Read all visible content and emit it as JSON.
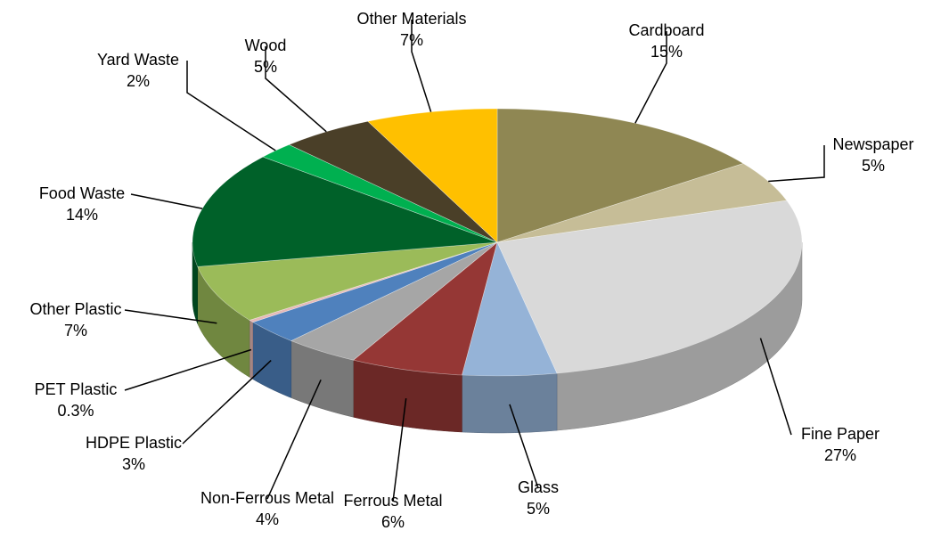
{
  "chart_data": {
    "type": "pie",
    "categories": [
      "Cardboard",
      "Newspaper",
      "Fine Paper",
      "Glass",
      "Ferrous Metal",
      "Non-Ferrous Metal",
      "HDPE Plastic",
      "PET Plastic",
      "Other Plastic",
      "Food Waste",
      "Yard Waste",
      "Wood",
      "Other Materials"
    ],
    "values": [
      15,
      5,
      27,
      5,
      6,
      4,
      3,
      0.3,
      7,
      14,
      2,
      5,
      7
    ],
    "value_labels": [
      "15%",
      "5%",
      "27%",
      "5%",
      "6%",
      "4%",
      "3%",
      "0.3%",
      "7%",
      "14%",
      "2%",
      "5%",
      "7%"
    ],
    "colors": [
      "#8f8753",
      "#c6bd97",
      "#d9d9d9",
      "#95b3d7",
      "#953735",
      "#a6a6a6",
      "#4f81bd",
      "#e6b9b8",
      "#9bbb59",
      "#006129",
      "#00b050",
      "#4a3f28",
      "#ffc000"
    ]
  }
}
